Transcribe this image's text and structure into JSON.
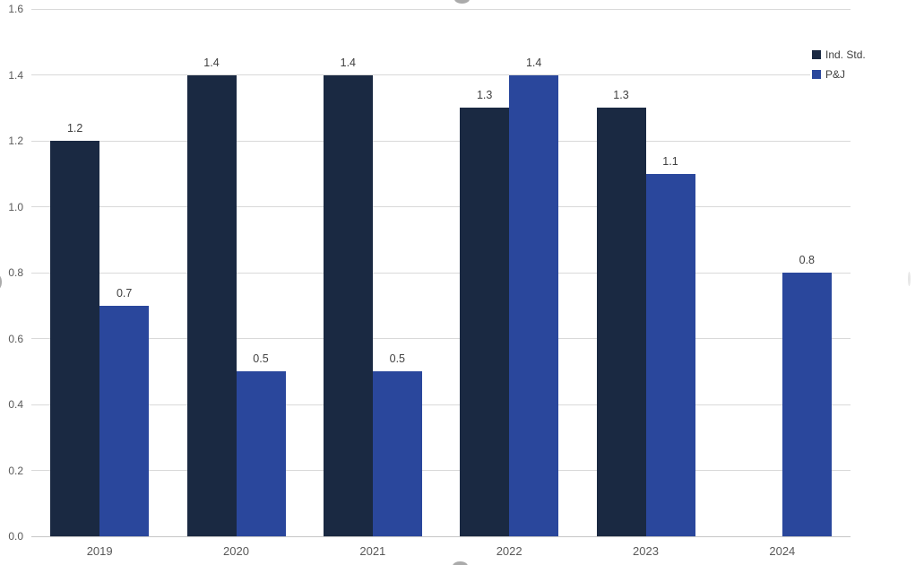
{
  "chart_data": {
    "type": "bar",
    "title": "",
    "xlabel": "",
    "ylabel": "",
    "categories": [
      "2019",
      "2020",
      "2021",
      "2022",
      "2023",
      "2024"
    ],
    "series": [
      {
        "name": "Ind. Std.",
        "color": "#1a2942",
        "values": [
          1.2,
          1.4,
          1.4,
          1.3,
          1.3,
          null
        ]
      },
      {
        "name": "P&J",
        "color": "#2a479c",
        "values": [
          0.7,
          0.5,
          0.5,
          1.4,
          1.1,
          0.8
        ]
      }
    ],
    "y_ticks": [
      "0.0",
      "0.2",
      "0.4",
      "0.6",
      "0.8",
      "1.0",
      "1.2",
      "1.4",
      "1.6"
    ],
    "ylim": [
      0,
      1.6
    ],
    "grid": true,
    "data_labels": true,
    "legend_position": "top-right"
  },
  "colors": {
    "background": "#ffffff",
    "gridline": "#d9d9d9",
    "axis_line": "#c6c6c6",
    "tick_text": "#595959",
    "data_label_text": "#404040",
    "legend_text": "#404040",
    "handle_fill": "#ababab",
    "handle_faint": "#e7e7e7"
  }
}
